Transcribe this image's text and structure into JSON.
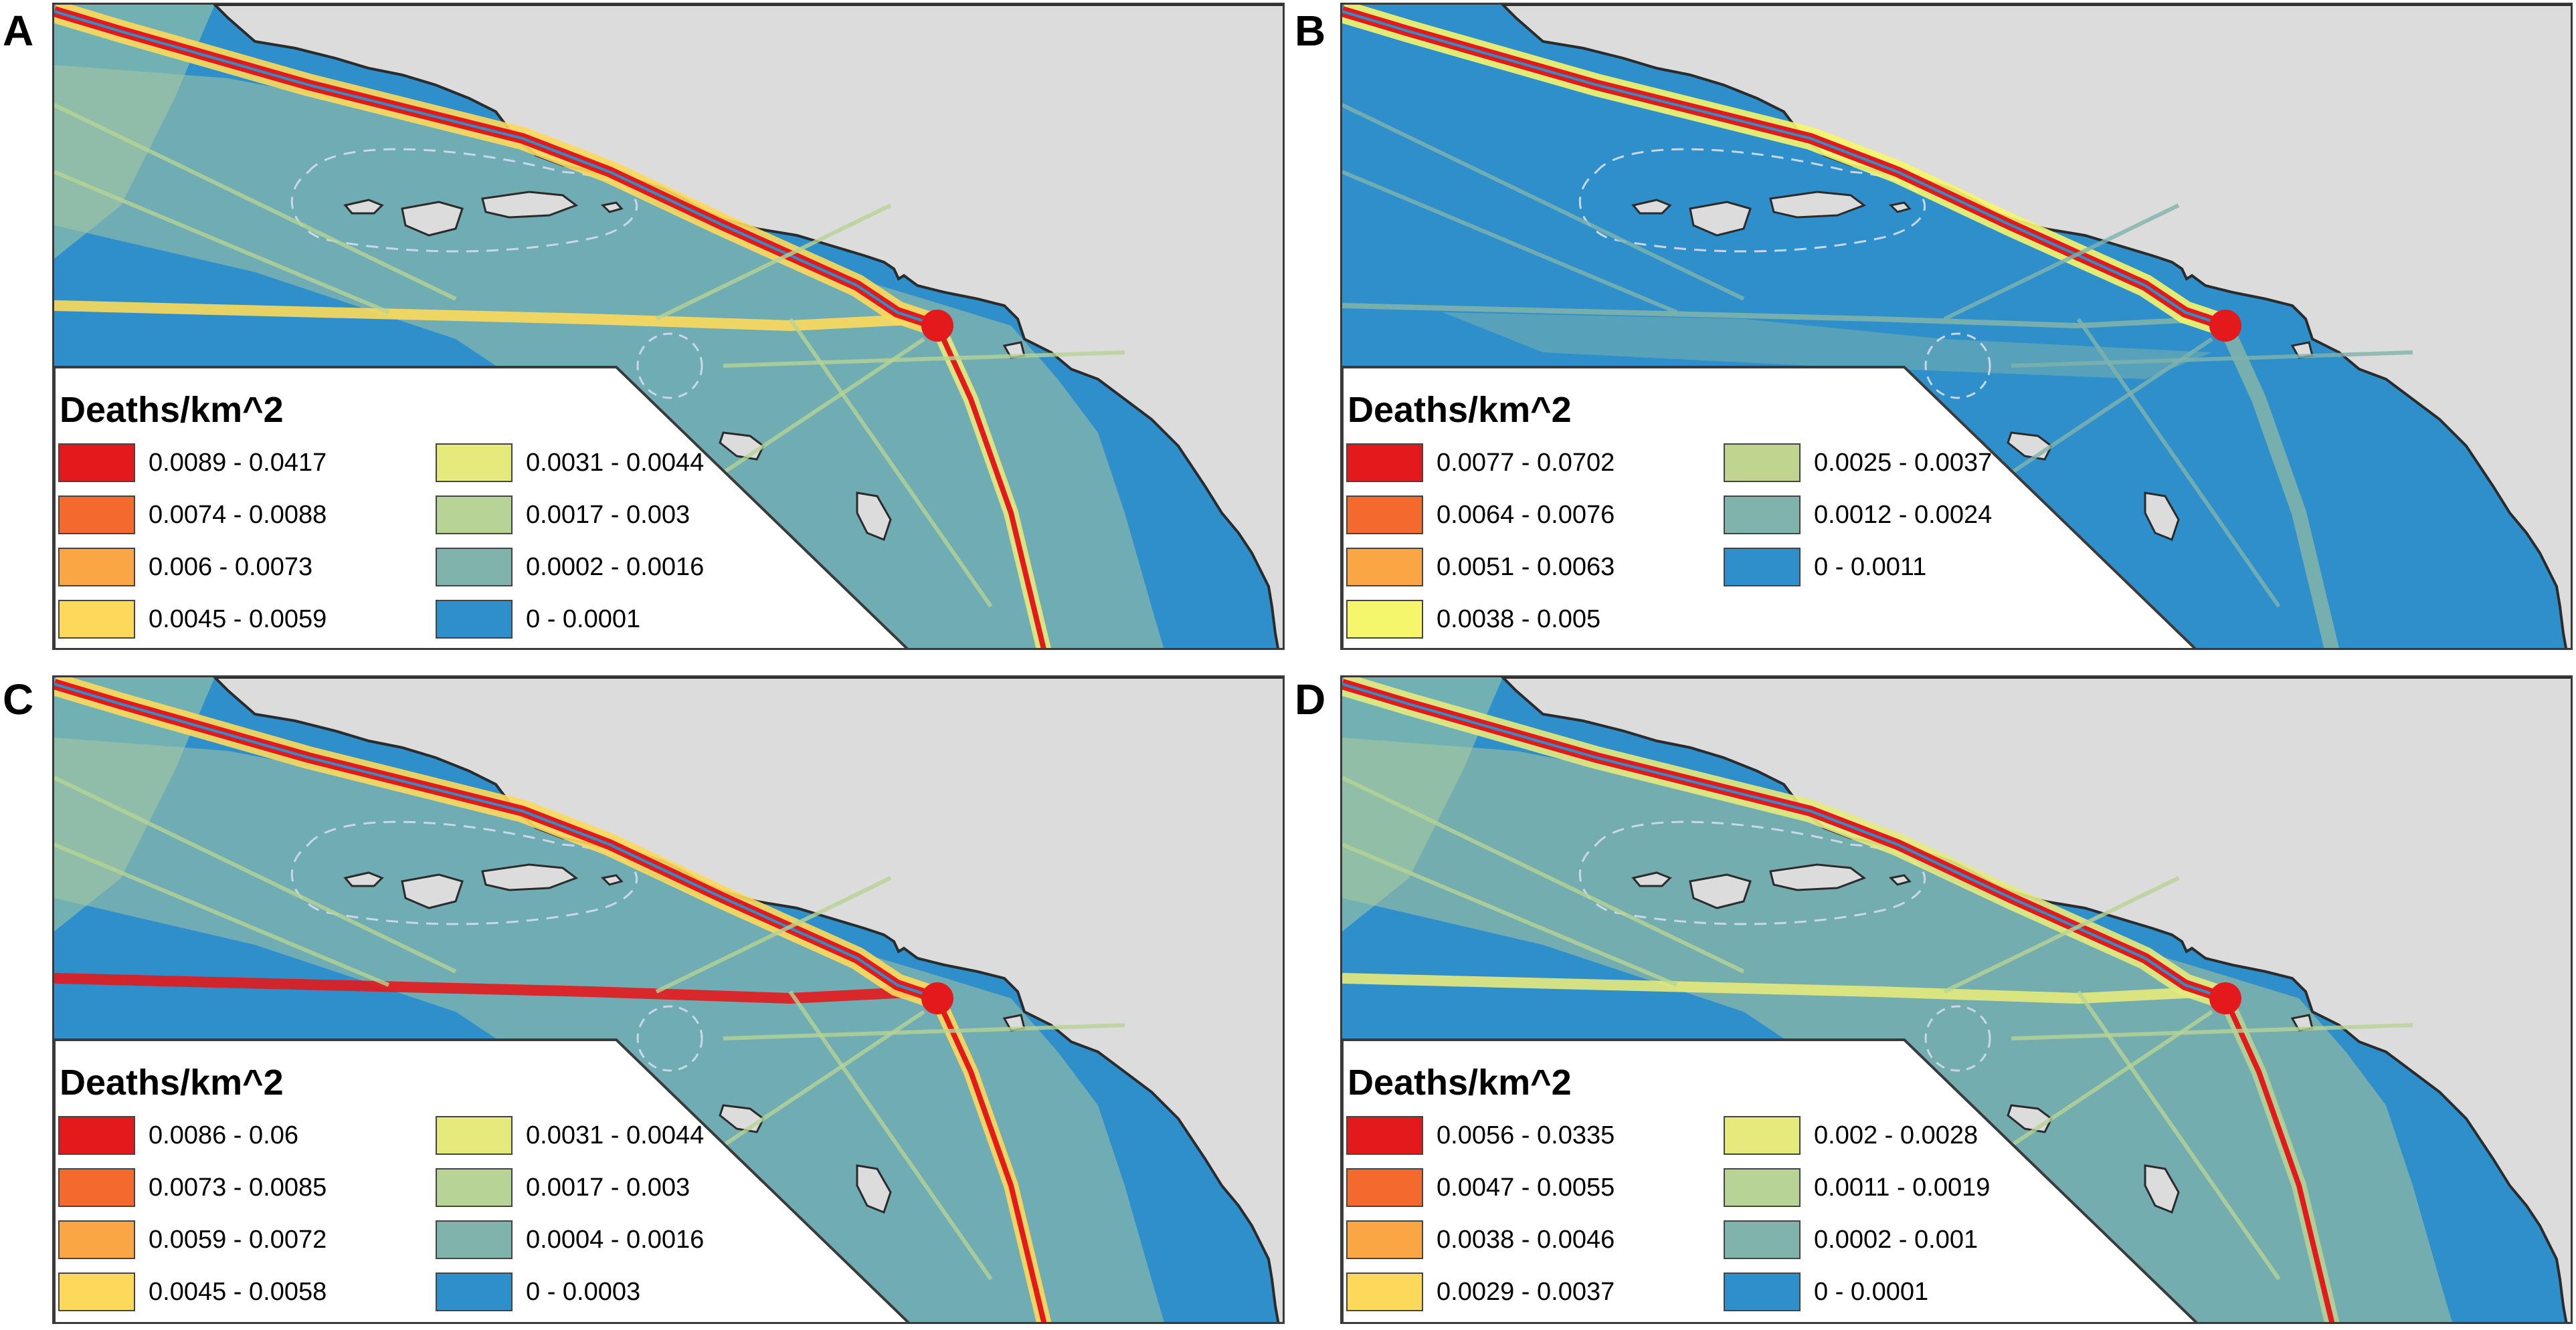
{
  "panels": [
    {
      "letter": "A",
      "legend_title": "Deaths/km^2",
      "classes": [
        {
          "label": "0.0089 - 0.0417",
          "color": "#e3191c"
        },
        {
          "label": "0.0074 - 0.0088",
          "color": "#f4692d"
        },
        {
          "label": "0.006 - 0.0073",
          "color": "#fba645"
        },
        {
          "label": "0.0045 - 0.0059",
          "color": "#fcd95b"
        },
        {
          "label": "0.0031 - 0.0044",
          "color": "#e6ea7c"
        },
        {
          "label": "0.0017 - 0.003",
          "color": "#b7d395"
        },
        {
          "label": "0.0002 - 0.0016",
          "color": "#7fb3ac"
        },
        {
          "label": "0 - 0.0001",
          "color": "#2e8fca"
        }
      ]
    },
    {
      "letter": "B",
      "legend_title": "Deaths/km^2",
      "classes": [
        {
          "label": "0.0077 - 0.0702",
          "color": "#e3191c"
        },
        {
          "label": "0.0064 - 0.0076",
          "color": "#f4692d"
        },
        {
          "label": "0.0051 - 0.0063",
          "color": "#fba645"
        },
        {
          "label": "0.0038 - 0.005",
          "color": "#f6f66c"
        },
        {
          "label": "0.0025 - 0.0037",
          "color": "#bfd58f"
        },
        {
          "label": "0.0012 - 0.0024",
          "color": "#7fb3ac"
        },
        {
          "label": "0 - 0.0011",
          "color": "#2e8fca"
        }
      ]
    },
    {
      "letter": "C",
      "legend_title": "Deaths/km^2",
      "classes": [
        {
          "label": "0.0086 - 0.06",
          "color": "#e3191c"
        },
        {
          "label": "0.0073 - 0.0085",
          "color": "#f4692d"
        },
        {
          "label": "0.0059 - 0.0072",
          "color": "#fba645"
        },
        {
          "label": "0.0045 - 0.0058",
          "color": "#fcd95b"
        },
        {
          "label": "0.0031 - 0.0044",
          "color": "#e6ea7c"
        },
        {
          "label": "0.0017 - 0.003",
          "color": "#b7d395"
        },
        {
          "label": "0.0004 - 0.0016",
          "color": "#7fb3ac"
        },
        {
          "label": "0 - 0.0003",
          "color": "#2e8fca"
        }
      ]
    },
    {
      "letter": "D",
      "legend_title": "Deaths/km^2",
      "classes": [
        {
          "label": "0.0056 - 0.0335",
          "color": "#e3191c"
        },
        {
          "label": "0.0047 - 0.0055",
          "color": "#f4692d"
        },
        {
          "label": "0.0038 - 0.0046",
          "color": "#fba645"
        },
        {
          "label": "0.0029 - 0.0037",
          "color": "#fcd95b"
        },
        {
          "label": "0.002 - 0.0028",
          "color": "#e6ea7c"
        },
        {
          "label": "0.0011 - 0.0019",
          "color": "#b7d395"
        },
        {
          "label": "0.0002 - 0.001",
          "color": "#7fb3ac"
        },
        {
          "label": "0 - 0.0001",
          "color": "#2e8fca"
        }
      ]
    }
  ],
  "colors": {
    "land": "#dcdcdc",
    "ocean": "#2e8fca",
    "coastline": "#2b2b2b",
    "boundary_dash": "#c8d8e8"
  }
}
